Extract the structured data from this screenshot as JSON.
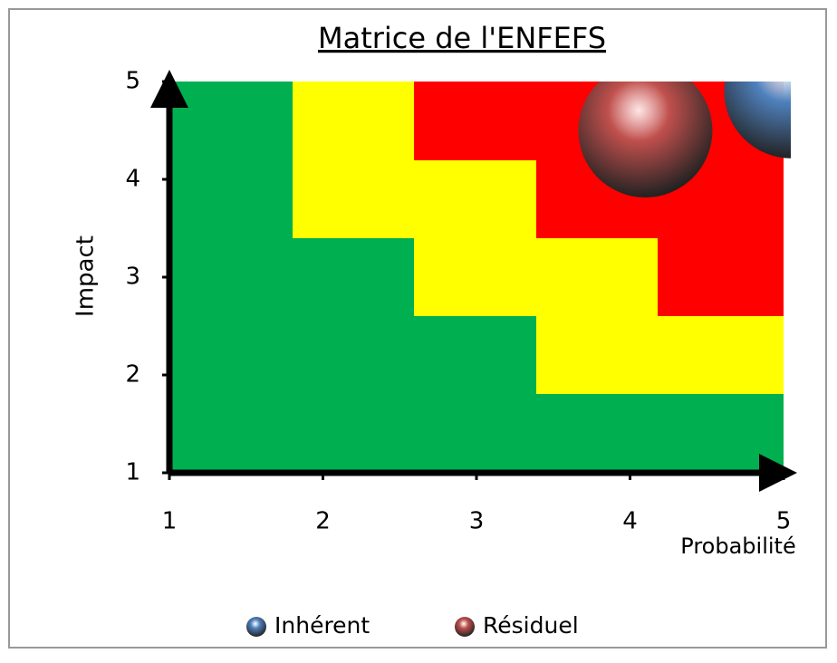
{
  "chart_data": {
    "type": "bubble",
    "title": "Matrice de l'ENFEFS",
    "x_label": "Probabilité",
    "y_label": "Impact",
    "series": [
      {
        "name": "Inhérent",
        "color": "#4f81bd",
        "x": [
          5.05
        ],
        "values": [
          4.9
        ],
        "sizes": [
          1
        ]
      },
      {
        "name": "Résiduel",
        "color": "#c0504d",
        "x": [
          4.1
        ],
        "values": [
          4.5
        ],
        "sizes": [
          1
        ]
      }
    ],
    "xlim": [
      1,
      5
    ],
    "ylim": [
      1,
      5
    ],
    "xticks": [
      1,
      2,
      3,
      4,
      5
    ],
    "yticks": [
      1,
      2,
      3,
      4,
      5
    ]
  }
}
